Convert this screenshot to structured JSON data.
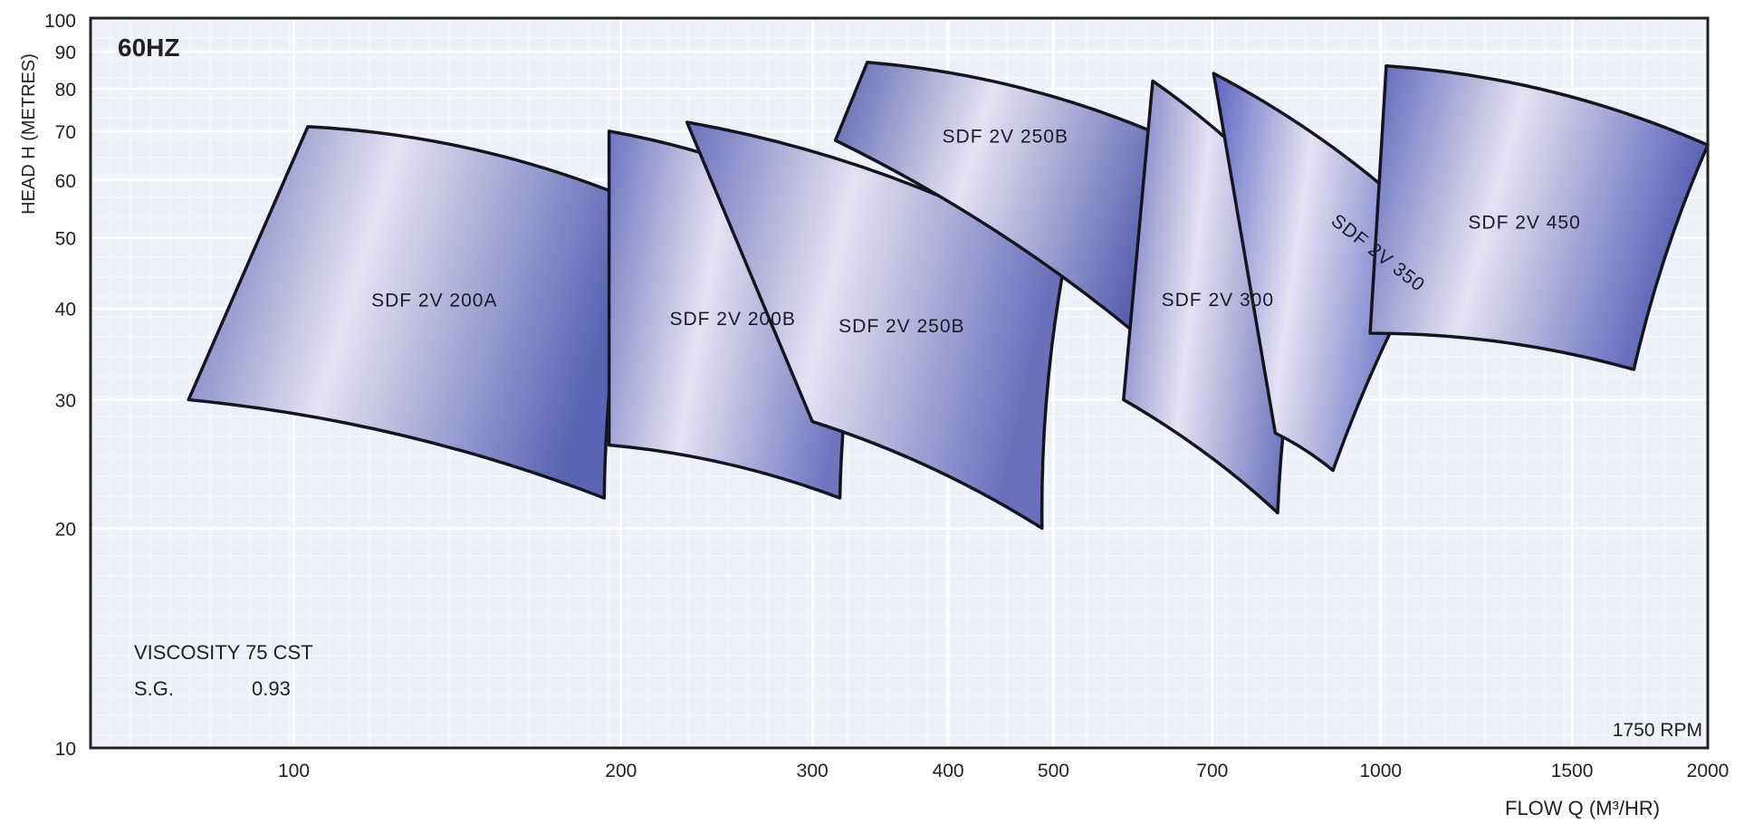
{
  "chart_data": {
    "type": "area",
    "title": "60HZ",
    "xlabel": "FLOW Q (M³/HR)",
    "ylabel": "HEAD H (METRES)",
    "x_scale": "log",
    "y_scale": "log",
    "xlim": [
      65,
      2000
    ],
    "ylim": [
      10,
      100
    ],
    "x_ticks": [
      100,
      200,
      300,
      400,
      500,
      700,
      1000,
      1500,
      2000
    ],
    "x_tick_labels": [
      "100",
      "200",
      "300",
      "400",
      "500",
      "700",
      "1000",
      "1500",
      "2000"
    ],
    "y_ticks": [
      10,
      20,
      30,
      40,
      50,
      60,
      70,
      80,
      90,
      100
    ],
    "y_tick_labels": [
      "10",
      "20",
      "30",
      "40",
      "50",
      "60",
      "70",
      "80",
      "90",
      "100"
    ],
    "grid": true,
    "annotations": {
      "viscosity_label": "VISCOSITY 75 CST",
      "sg_label": "S.G.",
      "sg_value": "0.93",
      "speed": "1750 RPM"
    },
    "series": [
      {
        "name": "SDF 2V 200A",
        "color": "#5a64b4",
        "corners": {
          "top_left": [
            103,
            71
          ],
          "top_right": [
            207,
            56
          ],
          "bottom_right": [
            193,
            22
          ],
          "bottom_left": [
            80,
            30
          ]
        }
      },
      {
        "name": "SDF 2V 200B",
        "color": "#6e74c0",
        "corners": {
          "top_left": [
            195,
            70
          ],
          "top_right": [
            341,
            52
          ],
          "bottom_right": [
            318,
            22
          ],
          "bottom_left": [
            195,
            26
          ]
        }
      },
      {
        "name": "SDF 2V 250B",
        "color": "#6a70bc",
        "corners": {
          "top_left": [
            230,
            72
          ],
          "top_right": [
            513,
            47
          ],
          "bottom_right": [
            488,
            20
          ],
          "bottom_left": [
            300,
            28
          ]
        }
      },
      {
        "name": "SDF 2V 250B",
        "color": "#5a62b0",
        "corners": {
          "top_left": [
            337,
            87
          ],
          "top_right": [
            658,
            67
          ],
          "bottom_right": [
            595,
            37
          ],
          "bottom_left": [
            315,
            68
          ]
        }
      },
      {
        "name": "SDF 2V 300",
        "color": "#6a70bc",
        "corners": {
          "top_left": [
            617,
            82
          ],
          "top_right": [
            874,
            51
          ],
          "bottom_right": [
            804,
            21
          ],
          "bottom_left": [
            580,
            30
          ]
        }
      },
      {
        "name": "SDF 2V 350",
        "color": "#5a64c0",
        "corners": {
          "top_left": [
            702,
            84
          ],
          "top_right": [
            1134,
            50
          ],
          "bottom_right": [
            904,
            24
          ],
          "bottom_left": [
            800,
            27
          ]
        }
      },
      {
        "name": "SDF 2V 450",
        "color": "#5a62b8",
        "corners": {
          "top_left": [
            1012,
            86
          ],
          "top_right": [
            2000,
            67
          ],
          "bottom_right": [
            1710,
            33
          ],
          "bottom_left": [
            978,
            37
          ]
        }
      }
    ]
  }
}
